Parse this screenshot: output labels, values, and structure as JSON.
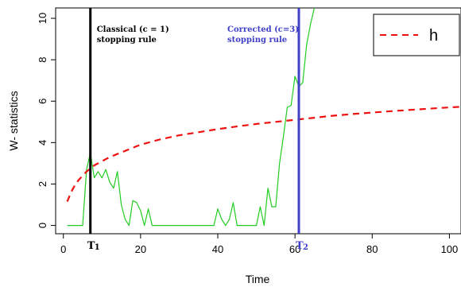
{
  "chart_data": {
    "type": "line",
    "xlabel": "Time",
    "ylabel": "W- statistics",
    "xlim": [
      -2,
      103
    ],
    "ylim": [
      -0.4,
      10.5
    ],
    "xticks": [
      0,
      20,
      40,
      60,
      80,
      100
    ],
    "yticks": [
      0,
      2,
      4,
      6,
      8,
      10
    ],
    "grid": false,
    "legend_position": "top-right",
    "colors": {
      "w_statistic": "#22cc22",
      "threshold_h": "#ee1111",
      "classical": "#000000",
      "corrected": "#3f3fc8"
    },
    "series": [
      {
        "name": "",
        "style": "solid",
        "x": [
          1,
          2,
          3,
          4,
          5,
          6,
          7,
          8,
          9,
          10,
          11,
          12,
          13,
          14,
          15,
          16,
          17,
          18,
          19,
          20,
          21,
          22,
          23,
          24,
          25,
          26,
          27,
          28,
          29,
          30,
          31,
          32,
          33,
          34,
          35,
          36,
          37,
          38,
          39,
          40,
          41,
          42,
          43,
          44,
          45,
          46,
          47,
          48,
          49,
          50,
          51,
          52,
          53,
          54,
          55,
          56,
          57,
          58,
          59,
          60,
          61,
          62,
          63,
          64,
          65
        ],
        "values": [
          0,
          0,
          0,
          0,
          0,
          2.7,
          3.5,
          2.3,
          2.6,
          2.3,
          2.7,
          2.1,
          1.8,
          2.6,
          1.0,
          0.3,
          0,
          1.2,
          1.1,
          0.7,
          0,
          0.8,
          0,
          0,
          0,
          0,
          0,
          0,
          0,
          0,
          0,
          0,
          0,
          0,
          0,
          0,
          0,
          0,
          0,
          0.8,
          0.3,
          0,
          0.3,
          1.1,
          0,
          0,
          0,
          0,
          0,
          0,
          0.9,
          0,
          1.8,
          0.9,
          0.9,
          3.0,
          4.3,
          5.7,
          5.8,
          7.2,
          6.7,
          6.9,
          8.7,
          9.7,
          10.5
        ]
      },
      {
        "name": "h",
        "style": "dashed",
        "x": [
          1,
          2,
          3,
          4,
          5,
          6,
          8,
          10,
          12,
          14,
          16,
          18,
          20,
          25,
          30,
          35,
          40,
          45,
          50,
          55,
          60,
          65,
          70,
          75,
          80,
          85,
          90,
          95,
          100,
          103
        ],
        "values": [
          1.15,
          1.6,
          1.95,
          2.2,
          2.4,
          2.6,
          2.9,
          3.1,
          3.3,
          3.45,
          3.6,
          3.75,
          3.9,
          4.15,
          4.35,
          4.5,
          4.65,
          4.78,
          4.9,
          5.0,
          5.1,
          5.2,
          5.3,
          5.38,
          5.45,
          5.52,
          5.58,
          5.64,
          5.7,
          5.73
        ]
      }
    ],
    "vlines": [
      {
        "x": 7,
        "label_lines": [
          "Classical (c = 1)",
          "stopping rule"
        ],
        "tick_label": "T",
        "tick_sub": "1"
      },
      {
        "x": 61,
        "label_lines": [
          "Corrected (c=3)",
          "stopping rule"
        ],
        "tick_label": "T",
        "tick_sub": "2"
      }
    ],
    "legend": [
      {
        "label": "h",
        "series": 1
      }
    ]
  }
}
